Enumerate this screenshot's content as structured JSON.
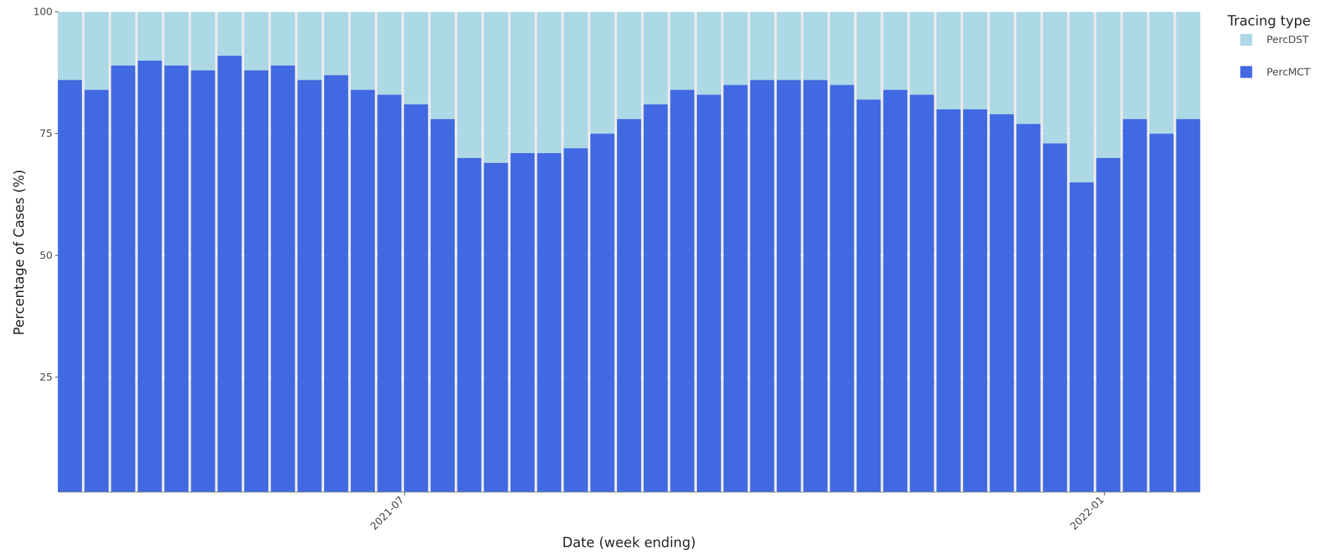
{
  "chart_data": {
    "type": "stacked_bar",
    "x_label": "Date (week ending)",
    "y_label": "Percentage of Cases (%)",
    "legend_title": "Tracing type",
    "legend_position": "right",
    "x": [
      "2021-04-04",
      "2021-04-11",
      "2021-04-18",
      "2021-04-25",
      "2021-05-02",
      "2021-05-09",
      "2021-05-16",
      "2021-05-23",
      "2021-05-30",
      "2021-06-06",
      "2021-06-13",
      "2021-06-20",
      "2021-06-27",
      "2021-07-04",
      "2021-07-11",
      "2021-07-18",
      "2021-07-25",
      "2021-08-01",
      "2021-08-08",
      "2021-08-15",
      "2021-08-22",
      "2021-08-29",
      "2021-09-05",
      "2021-09-12",
      "2021-09-19",
      "2021-09-26",
      "2021-10-03",
      "2021-10-10",
      "2021-10-17",
      "2021-10-24",
      "2021-10-31",
      "2021-11-07",
      "2021-11-14",
      "2021-11-21",
      "2021-11-28",
      "2021-12-05",
      "2021-12-12",
      "2021-12-19",
      "2021-12-26",
      "2022-01-02",
      "2022-01-09",
      "2022-01-16",
      "2022-01-23"
    ],
    "series": [
      {
        "name": "PercMCT",
        "color": "#4169e1",
        "values": [
          86,
          84,
          89,
          90,
          89,
          88,
          91,
          88,
          89,
          86,
          87,
          84,
          83,
          81,
          78,
          70,
          69,
          71,
          71,
          72,
          75,
          78,
          81,
          84,
          83,
          85,
          86,
          86,
          86,
          85,
          82,
          84,
          83,
          80,
          80,
          79,
          77,
          73,
          65,
          70,
          78,
          75,
          78
        ]
      },
      {
        "name": "PercDST",
        "color": "#add8e6",
        "values": [
          14,
          16,
          11,
          10,
          11,
          12,
          9,
          12,
          11,
          14,
          13,
          16,
          17,
          19,
          22,
          30,
          31,
          29,
          29,
          28,
          25,
          22,
          19,
          16,
          17,
          15,
          14,
          14,
          14,
          15,
          18,
          16,
          17,
          20,
          20,
          21,
          23,
          27,
          35,
          30,
          22,
          25,
          22
        ]
      }
    ],
    "xlim": [
      "2021-04-01",
      "2022-01-26"
    ],
    "xticks": [
      {
        "value": "2021-07-01",
        "label": "2021-07"
      },
      {
        "value": "2022-01-01",
        "label": "2022-01"
      }
    ],
    "ylim": [
      1.4,
      100
    ],
    "yticks": [
      25,
      50,
      75,
      100
    ],
    "grid": true
  }
}
